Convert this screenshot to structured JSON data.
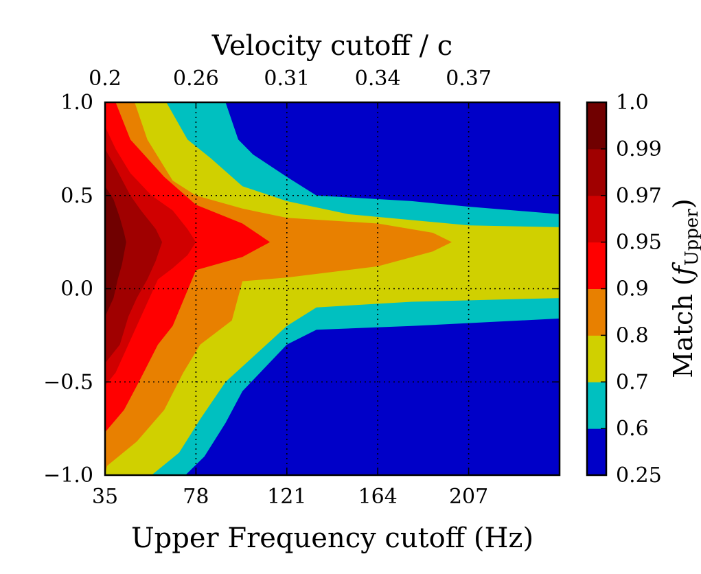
{
  "chart_data": {
    "type": "contourf",
    "title": "Velocity cutoff / c",
    "xlabel": "Upper Frequency cutoff (Hz)",
    "ylabel": "",
    "xlim": [
      35,
      250
    ],
    "ylim": [
      -1.0,
      1.0
    ],
    "grid": true,
    "x_ticks": [
      35,
      78,
      121,
      164,
      207
    ],
    "x_tick_labels": [
      "35",
      "78",
      "121",
      "164",
      "207"
    ],
    "y_ticks": [
      -1.0,
      -0.5,
      0.0,
      0.5,
      1.0
    ],
    "y_tick_labels": [
      "−1.0",
      "−0.5",
      "0.0",
      "0.5",
      "1.0"
    ],
    "top_ticks": [
      35,
      78,
      121,
      164,
      207
    ],
    "top_tick_labels": [
      "0.2",
      "0.26",
      "0.31",
      "0.34",
      "0.37"
    ],
    "colorbar": {
      "label_main": "Match (",
      "label_f": "f",
      "label_sub": "Upper",
      "label_close": ")",
      "levels": [
        0.25,
        0.6,
        0.7,
        0.8,
        0.9,
        0.95,
        0.97,
        0.99,
        1.0
      ],
      "tick_labels": [
        "0.25",
        "0.6",
        "0.7",
        "0.8",
        "0.9",
        "0.95",
        "0.97",
        "0.99",
        "1.0"
      ],
      "colors": [
        "#0000c8",
        "#00c0c0",
        "#d0d000",
        "#e88000",
        "#ff0000",
        "#d00000",
        "#a00000",
        "#700000"
      ]
    },
    "contours": [
      {
        "level": 0.6,
        "upper": [
          [
            35,
            1.0
          ],
          [
            78,
            1.0
          ],
          [
            92,
            1.0
          ],
          [
            98,
            0.8
          ],
          [
            105,
            0.72
          ],
          [
            121,
            0.6
          ],
          [
            135,
            0.5
          ],
          [
            180,
            0.47
          ],
          [
            207,
            0.44
          ],
          [
            250,
            0.4
          ]
        ],
        "lower": [
          [
            35,
            -1.0
          ],
          [
            73,
            -1.0
          ],
          [
            82,
            -0.9
          ],
          [
            92,
            -0.72
          ],
          [
            100,
            -0.55
          ],
          [
            121,
            -0.3
          ],
          [
            135,
            -0.22
          ],
          [
            180,
            -0.2
          ],
          [
            250,
            -0.16
          ]
        ]
      },
      {
        "level": 0.7,
        "upper": [
          [
            35,
            1.0
          ],
          [
            64,
            1.0
          ],
          [
            74,
            0.8
          ],
          [
            85,
            0.7
          ],
          [
            100,
            0.55
          ],
          [
            121,
            0.47
          ],
          [
            150,
            0.4
          ],
          [
            207,
            0.34
          ],
          [
            250,
            0.33
          ]
        ],
        "lower": [
          [
            35,
            -1.0
          ],
          [
            57,
            -1.0
          ],
          [
            70,
            -0.88
          ],
          [
            80,
            -0.7
          ],
          [
            92,
            -0.5
          ],
          [
            121,
            -0.2
          ],
          [
            135,
            -0.1
          ],
          [
            180,
            -0.07
          ],
          [
            250,
            -0.05
          ]
        ]
      },
      {
        "level": 0.8,
        "upper": [
          [
            35,
            1.0
          ],
          [
            49,
            1.0
          ],
          [
            55,
            0.8
          ],
          [
            67,
            0.58
          ],
          [
            78,
            0.5
          ],
          [
            100,
            0.43
          ],
          [
            121,
            0.38
          ],
          [
            164,
            0.35
          ],
          [
            190,
            0.3
          ],
          [
            199,
            0.25
          ],
          [
            190,
            0.2
          ],
          [
            164,
            0.12
          ],
          [
            121,
            0.06
          ],
          [
            100,
            0.04
          ]
        ],
        "lower": [
          [
            35,
            -1.0
          ],
          [
            36,
            -0.95
          ],
          [
            50,
            -0.82
          ],
          [
            63,
            -0.65
          ],
          [
            72,
            -0.45
          ],
          [
            80,
            -0.3
          ],
          [
            95,
            -0.17
          ],
          [
            100,
            0.04
          ]
        ]
      },
      {
        "level": 0.9,
        "upper": [
          [
            35,
            1.0
          ],
          [
            40,
            1.0
          ],
          [
            47,
            0.8
          ],
          [
            63,
            0.6
          ],
          [
            78,
            0.45
          ],
          [
            100,
            0.35
          ],
          [
            113,
            0.25
          ]
        ],
        "lower": [
          [
            35,
            -0.77
          ],
          [
            44,
            -0.65
          ],
          [
            51,
            -0.5
          ],
          [
            60,
            -0.3
          ],
          [
            67,
            -0.2
          ],
          [
            78,
            0.1
          ],
          [
            100,
            0.17
          ],
          [
            113,
            0.25
          ]
        ]
      },
      {
        "level": 0.95,
        "upper": [
          [
            35,
            0.87
          ],
          [
            40,
            0.75
          ],
          [
            47,
            0.62
          ],
          [
            57,
            0.5
          ],
          [
            67,
            0.42
          ],
          [
            74,
            0.32
          ],
          [
            78,
            0.25
          ]
        ],
        "lower": [
          [
            35,
            -0.52
          ],
          [
            40,
            -0.45
          ],
          [
            46,
            -0.3
          ],
          [
            52,
            -0.15
          ],
          [
            60,
            0.05
          ],
          [
            67,
            0.11
          ],
          [
            74,
            0.18
          ],
          [
            78,
            0.25
          ]
        ]
      },
      {
        "level": 0.97,
        "upper": [
          [
            35,
            0.75
          ],
          [
            40,
            0.65
          ],
          [
            47,
            0.5
          ],
          [
            52,
            0.42
          ],
          [
            59,
            0.32
          ],
          [
            62,
            0.25
          ]
        ],
        "lower": [
          [
            35,
            -0.4
          ],
          [
            42,
            -0.3
          ],
          [
            46,
            -0.15
          ],
          [
            50,
            -0.05
          ],
          [
            55,
            0.05
          ],
          [
            59,
            0.15
          ],
          [
            62,
            0.25
          ]
        ]
      },
      {
        "level": 0.99,
        "upper": [
          [
            35,
            0.55
          ],
          [
            39,
            0.48
          ],
          [
            42,
            0.38
          ],
          [
            44,
            0.3
          ],
          [
            45,
            0.25
          ]
        ],
        "lower": [
          [
            35,
            -0.15
          ],
          [
            39,
            -0.05
          ],
          [
            41,
            0.05
          ],
          [
            43,
            0.13
          ],
          [
            45,
            0.25
          ]
        ]
      }
    ]
  }
}
